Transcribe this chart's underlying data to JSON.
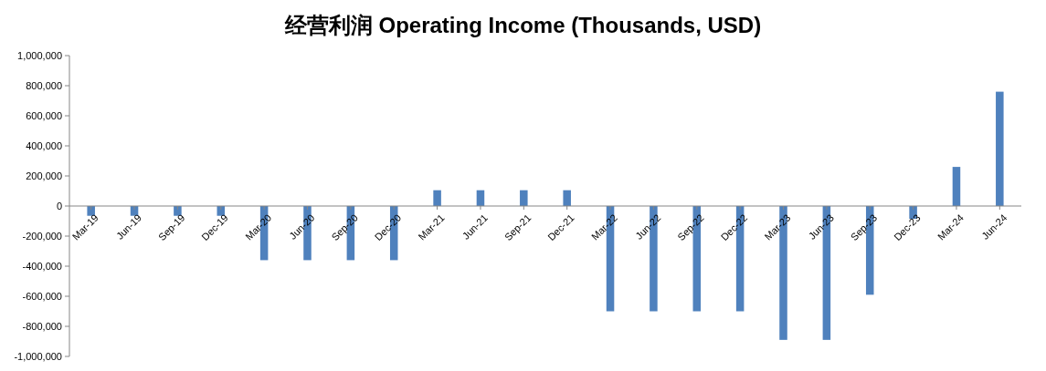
{
  "chart_data": {
    "type": "bar",
    "title": "经营利润 Operating Income (Thousands, USD)",
    "categories": [
      "Mar-19",
      "Jun-19",
      "Sep-19",
      "Dec-19",
      "Mar-20",
      "Jun-20",
      "Sep-20",
      "Dec-20",
      "Mar-21",
      "Jun-21",
      "Sep-21",
      "Dec-21",
      "Mar-22",
      "Jun-22",
      "Sep-22",
      "Dec-22",
      "Mar-23",
      "Jun-23",
      "Sep-23",
      "Dec-23",
      "Mar-24",
      "Jun-24"
    ],
    "values": [
      -65000,
      -65000,
      -65000,
      -65000,
      -360000,
      -360000,
      -360000,
      -360000,
      105000,
      105000,
      105000,
      105000,
      -700000,
      -700000,
      -700000,
      -700000,
      -890000,
      -890000,
      -590000,
      -85000,
      260000,
      760000
    ],
    "color": "#4f81bd",
    "ylim": [
      -1000000,
      1000000
    ],
    "yticks": [
      {
        "value": -1000000,
        "label": "-1,000,000"
      },
      {
        "value": -800000,
        "label": "-800,000"
      },
      {
        "value": -600000,
        "label": "-600,000"
      },
      {
        "value": -400000,
        "label": "-400,000"
      },
      {
        "value": -200000,
        "label": "-200,000"
      },
      {
        "value": 0,
        "label": "0"
      },
      {
        "value": 200000,
        "label": "200,000"
      },
      {
        "value": 400000,
        "label": "400,000"
      },
      {
        "value": 600000,
        "label": "600,000"
      },
      {
        "value": 800000,
        "label": "800,000"
      },
      {
        "value": 1000000,
        "label": "1,000,000"
      }
    ],
    "grid": false
  }
}
